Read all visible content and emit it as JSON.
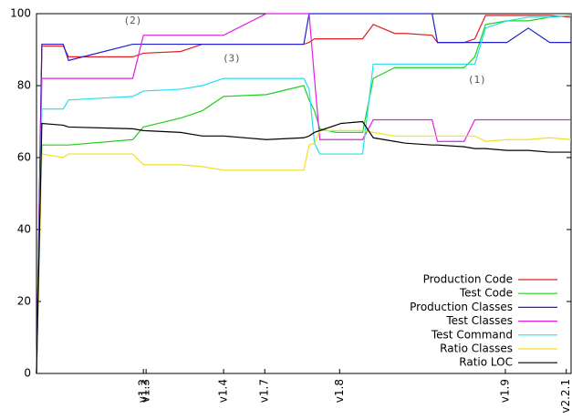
{
  "chart_data": {
    "type": "line",
    "x": [
      0,
      1,
      5,
      6,
      18,
      20,
      27,
      31,
      35,
      43,
      50,
      51,
      52,
      53,
      56,
      57,
      61,
      63,
      67,
      69,
      74,
      75,
      80,
      82,
      84,
      88,
      92,
      96,
      100
    ],
    "series": [
      {
        "name": "Production Code",
        "color": "#e02020",
        "values": [
          0,
          91,
          91,
          88,
          88,
          89,
          89.5,
          91.5,
          91.5,
          91.5,
          91.5,
          92,
          93,
          93,
          93,
          93,
          93,
          97,
          94.5,
          94.5,
          94,
          92,
          92,
          93,
          99.5,
          99.5,
          99.5,
          99.5,
          99
        ]
      },
      {
        "name": "Test Code",
        "color": "#20d020",
        "values": [
          0,
          63.5,
          63.5,
          63.5,
          65,
          68.5,
          71,
          73,
          77,
          77.5,
          80,
          76,
          73,
          68,
          67,
          67,
          67,
          82,
          85,
          85,
          85,
          85,
          85,
          88,
          97,
          98,
          98,
          99,
          99.5
        ]
      },
      {
        "name": "Production Classes",
        "color": "#2020d0",
        "values": [
          0,
          91.5,
          91.5,
          87,
          91.5,
          91.5,
          91.5,
          91.5,
          91.5,
          91.5,
          91.5,
          100,
          100,
          100,
          100,
          100,
          100,
          100,
          100,
          100,
          100,
          92,
          92,
          92,
          92,
          92,
          96,
          92,
          92
        ]
      },
      {
        "name": "Test Classes",
        "color": "#e020e0",
        "values": [
          0,
          82,
          82,
          82,
          82,
          94,
          94,
          94,
          94,
          100,
          100,
          100,
          82,
          65,
          65,
          65,
          65,
          70.5,
          70.5,
          70.5,
          70.5,
          64.5,
          64.5,
          70.5,
          70.5,
          70.5,
          70.5,
          70.5,
          70.5
        ]
      },
      {
        "name": "Test Command",
        "color": "#20e0e8",
        "values": [
          0,
          73.5,
          73.5,
          76,
          77,
          78.5,
          79,
          80,
          82,
          82,
          82,
          79,
          64,
          61,
          61,
          61,
          61,
          86,
          86,
          86,
          86,
          86,
          86,
          86,
          96,
          98,
          99,
          99,
          99.5
        ]
      },
      {
        "name": "Ratio Classes",
        "color": "#f0e020",
        "values": [
          0,
          61,
          60,
          61,
          61,
          58,
          58,
          57.5,
          56.5,
          56.5,
          56.5,
          63.5,
          64,
          67.5,
          67.5,
          67.5,
          67.5,
          67,
          66,
          66,
          66,
          66,
          66,
          66,
          64.5,
          65,
          65,
          65.5,
          65
        ]
      },
      {
        "name": "Ratio LOC",
        "color": "#000000",
        "values": [
          0,
          69.5,
          69,
          68.5,
          68,
          67.5,
          67,
          66,
          66,
          65,
          65.5,
          66,
          67,
          67.5,
          69,
          69.5,
          70,
          65.5,
          64.5,
          64,
          63.5,
          63.5,
          63,
          62.5,
          62.5,
          62,
          62,
          61.5,
          61.5
        ]
      }
    ],
    "xlim": [
      0,
      100
    ],
    "xticks": [
      {
        "value": 20,
        "label": "v1.2"
      },
      {
        "value": 20.5,
        "label": "v1.3"
      },
      {
        "value": 35,
        "label": "v1.4"
      },
      {
        "value": 42.7,
        "label": "v1.7"
      },
      {
        "value": 56.7,
        "label": "v1.8"
      },
      {
        "value": 87.7,
        "label": "v1.9"
      },
      {
        "value": 99.1,
        "label": "v2.2.1"
      }
    ],
    "ylim": [
      0,
      100
    ],
    "yticks": [
      0,
      20,
      40,
      60,
      80,
      100
    ],
    "annotations": [
      {
        "text": "(2)",
        "x": 18,
        "y": 98
      },
      {
        "text": "(3)",
        "x": 36.5,
        "y": 87.5
      },
      {
        "text": "(1)",
        "x": 82.4,
        "y": 81.5
      }
    ],
    "legend": "lower right",
    "grid": false
  }
}
